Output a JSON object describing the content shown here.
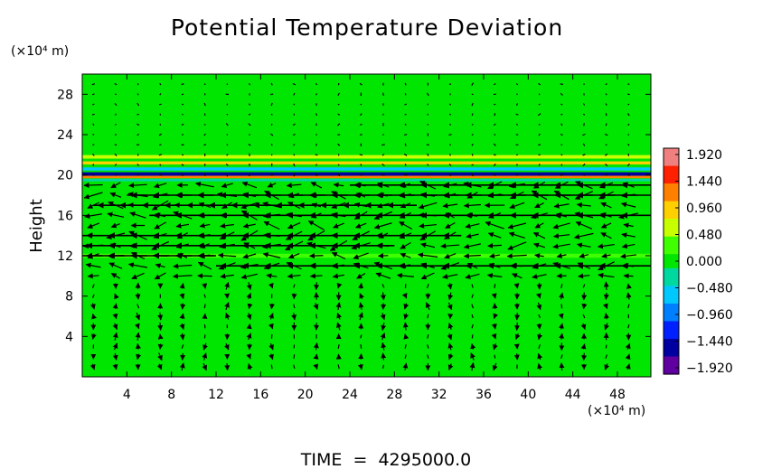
{
  "chart_data": {
    "type": "heatmap",
    "title": "Potential Temperature Deviation",
    "ylabel": "Height",
    "y_unit": "(×10⁴ m)",
    "x_unit": "(×10⁴ m)",
    "footer": "TIME  =  4295000.0",
    "xlim": [
      0,
      51
    ],
    "ylim": [
      0,
      30
    ],
    "x_ticks": [
      4,
      8,
      12,
      16,
      20,
      24,
      28,
      32,
      36,
      40,
      44,
      48
    ],
    "y_ticks": [
      4,
      8,
      12,
      16,
      20,
      24,
      28
    ],
    "background_color": "#00e600",
    "colorbar": {
      "min": -1.92,
      "max": 1.92,
      "labels": [
        "1.920",
        "1.440",
        "0.960",
        "0.480",
        "0.000",
        "−0.480",
        "−0.960",
        "−1.440",
        "−1.920"
      ],
      "colors": [
        "#f08080",
        "#ff2000",
        "#ff8000",
        "#ffd000",
        "#c8ff00",
        "#40ff00",
        "#00e600",
        "#00d8a0",
        "#00c8ff",
        "#0080ff",
        "#0020ff",
        "#0000a0",
        "#6000a0"
      ]
    },
    "bands": [
      {
        "y": 21.8,
        "thickness": 0.35,
        "color": "#c8ff00"
      },
      {
        "y": 21.2,
        "thickness": 0.3,
        "color": "#ffd000"
      },
      {
        "y": 20.6,
        "thickness": 0.3,
        "color": "#00c8ff"
      },
      {
        "y": 20.1,
        "thickness": 0.35,
        "color": "#0000a0"
      },
      {
        "y": 19.8,
        "thickness": 0.25,
        "color": "#ff8000"
      },
      {
        "y": 19.5,
        "thickness": 0.25,
        "color": "#00d8a0"
      },
      {
        "y": 12.0,
        "thickness": 0.4,
        "color": "#40ff00"
      }
    ],
    "jets": [
      {
        "y": 19.0,
        "x0": 24,
        "x1": 51,
        "u": -1
      },
      {
        "y": 18.0,
        "x0": 4,
        "x1": 51,
        "u": -1
      },
      {
        "y": 17.0,
        "x0": 1,
        "x1": 30,
        "u": -1
      },
      {
        "y": 16.0,
        "x0": 6,
        "x1": 51,
        "u": -1
      },
      {
        "y": 14.0,
        "x0": 0,
        "x1": 34,
        "u": -1
      },
      {
        "y": 13.0,
        "x0": 0,
        "x1": 28,
        "u": -1
      },
      {
        "y": 12.0,
        "x0": 0,
        "x1": 12,
        "u": -1
      },
      {
        "y": 11.0,
        "x0": 12,
        "x1": 51,
        "u": -1
      }
    ]
  }
}
